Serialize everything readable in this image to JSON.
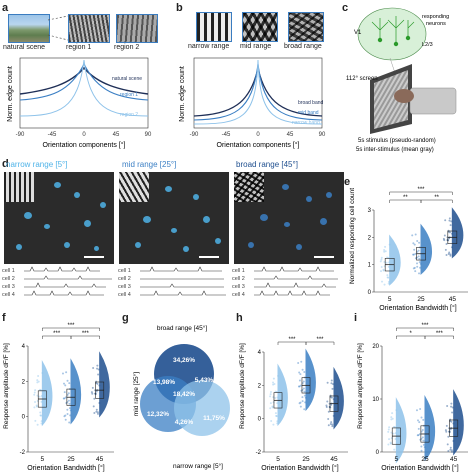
{
  "panels": {
    "a": {
      "letter": "a",
      "thumb_labels": [
        "natural scene",
        "region 1",
        "region 2"
      ],
      "ylabel": "Norm. edge count",
      "xlabel": "Orientation components [°]",
      "ticks": [
        "-90",
        "-45",
        "0",
        "45",
        "90"
      ],
      "series_labels": [
        "natural scene",
        "region 1",
        "region 2"
      ]
    },
    "b": {
      "letter": "b",
      "thumb_labels": [
        "narrow range",
        "mid range",
        "broad range"
      ],
      "ylabel": "Norm. edge count",
      "xlabel": "Orientation components [°]",
      "ticks": [
        "-90",
        "-45",
        "0",
        "45",
        "90"
      ],
      "series_labels": [
        "broad band",
        "mid band",
        "narrow band"
      ]
    },
    "c": {
      "letter": "c",
      "v1": "V1",
      "neurons": "responding\nneurons",
      "layer": "L2/3",
      "screen": "112° screen",
      "stimulus": "5s stimulus (pseudo-random)",
      "inter": "5s inter-stimulus (mean gray)"
    },
    "d": {
      "letter": "d",
      "titles": [
        "narrow range [5°]",
        "mid range [25°]",
        "broad range [45°]"
      ],
      "cells": [
        "cell 1",
        "cell 2",
        "cell 3",
        "cell 4"
      ]
    },
    "e": {
      "letter": "e",
      "ylabel": "Normalized responding cell count",
      "xlabel": "Orientation Bandwidth [°]",
      "sig": [
        "***",
        "**",
        "**"
      ]
    },
    "f": {
      "letter": "f",
      "ylabel": "Response amplitude dF/F [%]",
      "xlabel": "Orientation Bandwidth [°]",
      "sig": [
        "***",
        "***",
        "***"
      ]
    },
    "g": {
      "letter": "g",
      "labels": [
        "broad range [45°]",
        "mid range [25°]",
        "narrow range [5°]"
      ],
      "values": [
        "34,26%",
        "5,43%",
        "13,98%",
        "18,42%",
        "12,32%",
        "11,75%",
        "4,26%"
      ]
    },
    "h": {
      "letter": "h",
      "ylabel": "Response amplitude dF/F [%]",
      "xlabel": "Orientation Bandwidth [°]",
      "sig": [
        "***",
        "***"
      ]
    },
    "i": {
      "letter": "i",
      "ylabel": "Response amplitude dF/F [%]",
      "xlabel": "Orientation Bandwidth [°]",
      "sig": [
        "***",
        "*",
        "***"
      ]
    }
  },
  "chart_data": [
    {
      "type": "violin",
      "panel": "e",
      "categories": [
        "5",
        "25",
        "45"
      ],
      "values": [
        1.0,
        1.4,
        2.0
      ],
      "ylim": [
        0,
        3
      ],
      "yticks": [
        0,
        1,
        2,
        3
      ]
    },
    {
      "type": "violin",
      "panel": "f",
      "categories": [
        "5",
        "25",
        "45"
      ],
      "values": [
        1.0,
        1.1,
        1.5
      ],
      "ylim": [
        -2,
        4
      ],
      "yticks": [
        -2,
        0,
        2,
        4
      ]
    },
    {
      "type": "violin",
      "panel": "h",
      "categories": [
        "5",
        "25",
        "45"
      ],
      "values": [
        1.1,
        2.0,
        0.9
      ],
      "ylim": [
        -2,
        4
      ],
      "yticks": [
        -2,
        0,
        2,
        4
      ]
    },
    {
      "type": "violin",
      "panel": "i",
      "categories": [
        "5",
        "25",
        "45"
      ],
      "values": [
        3.0,
        3.4,
        4.5
      ],
      "ylim": [
        0,
        20
      ],
      "yticks": [
        0,
        10,
        20
      ]
    }
  ]
}
